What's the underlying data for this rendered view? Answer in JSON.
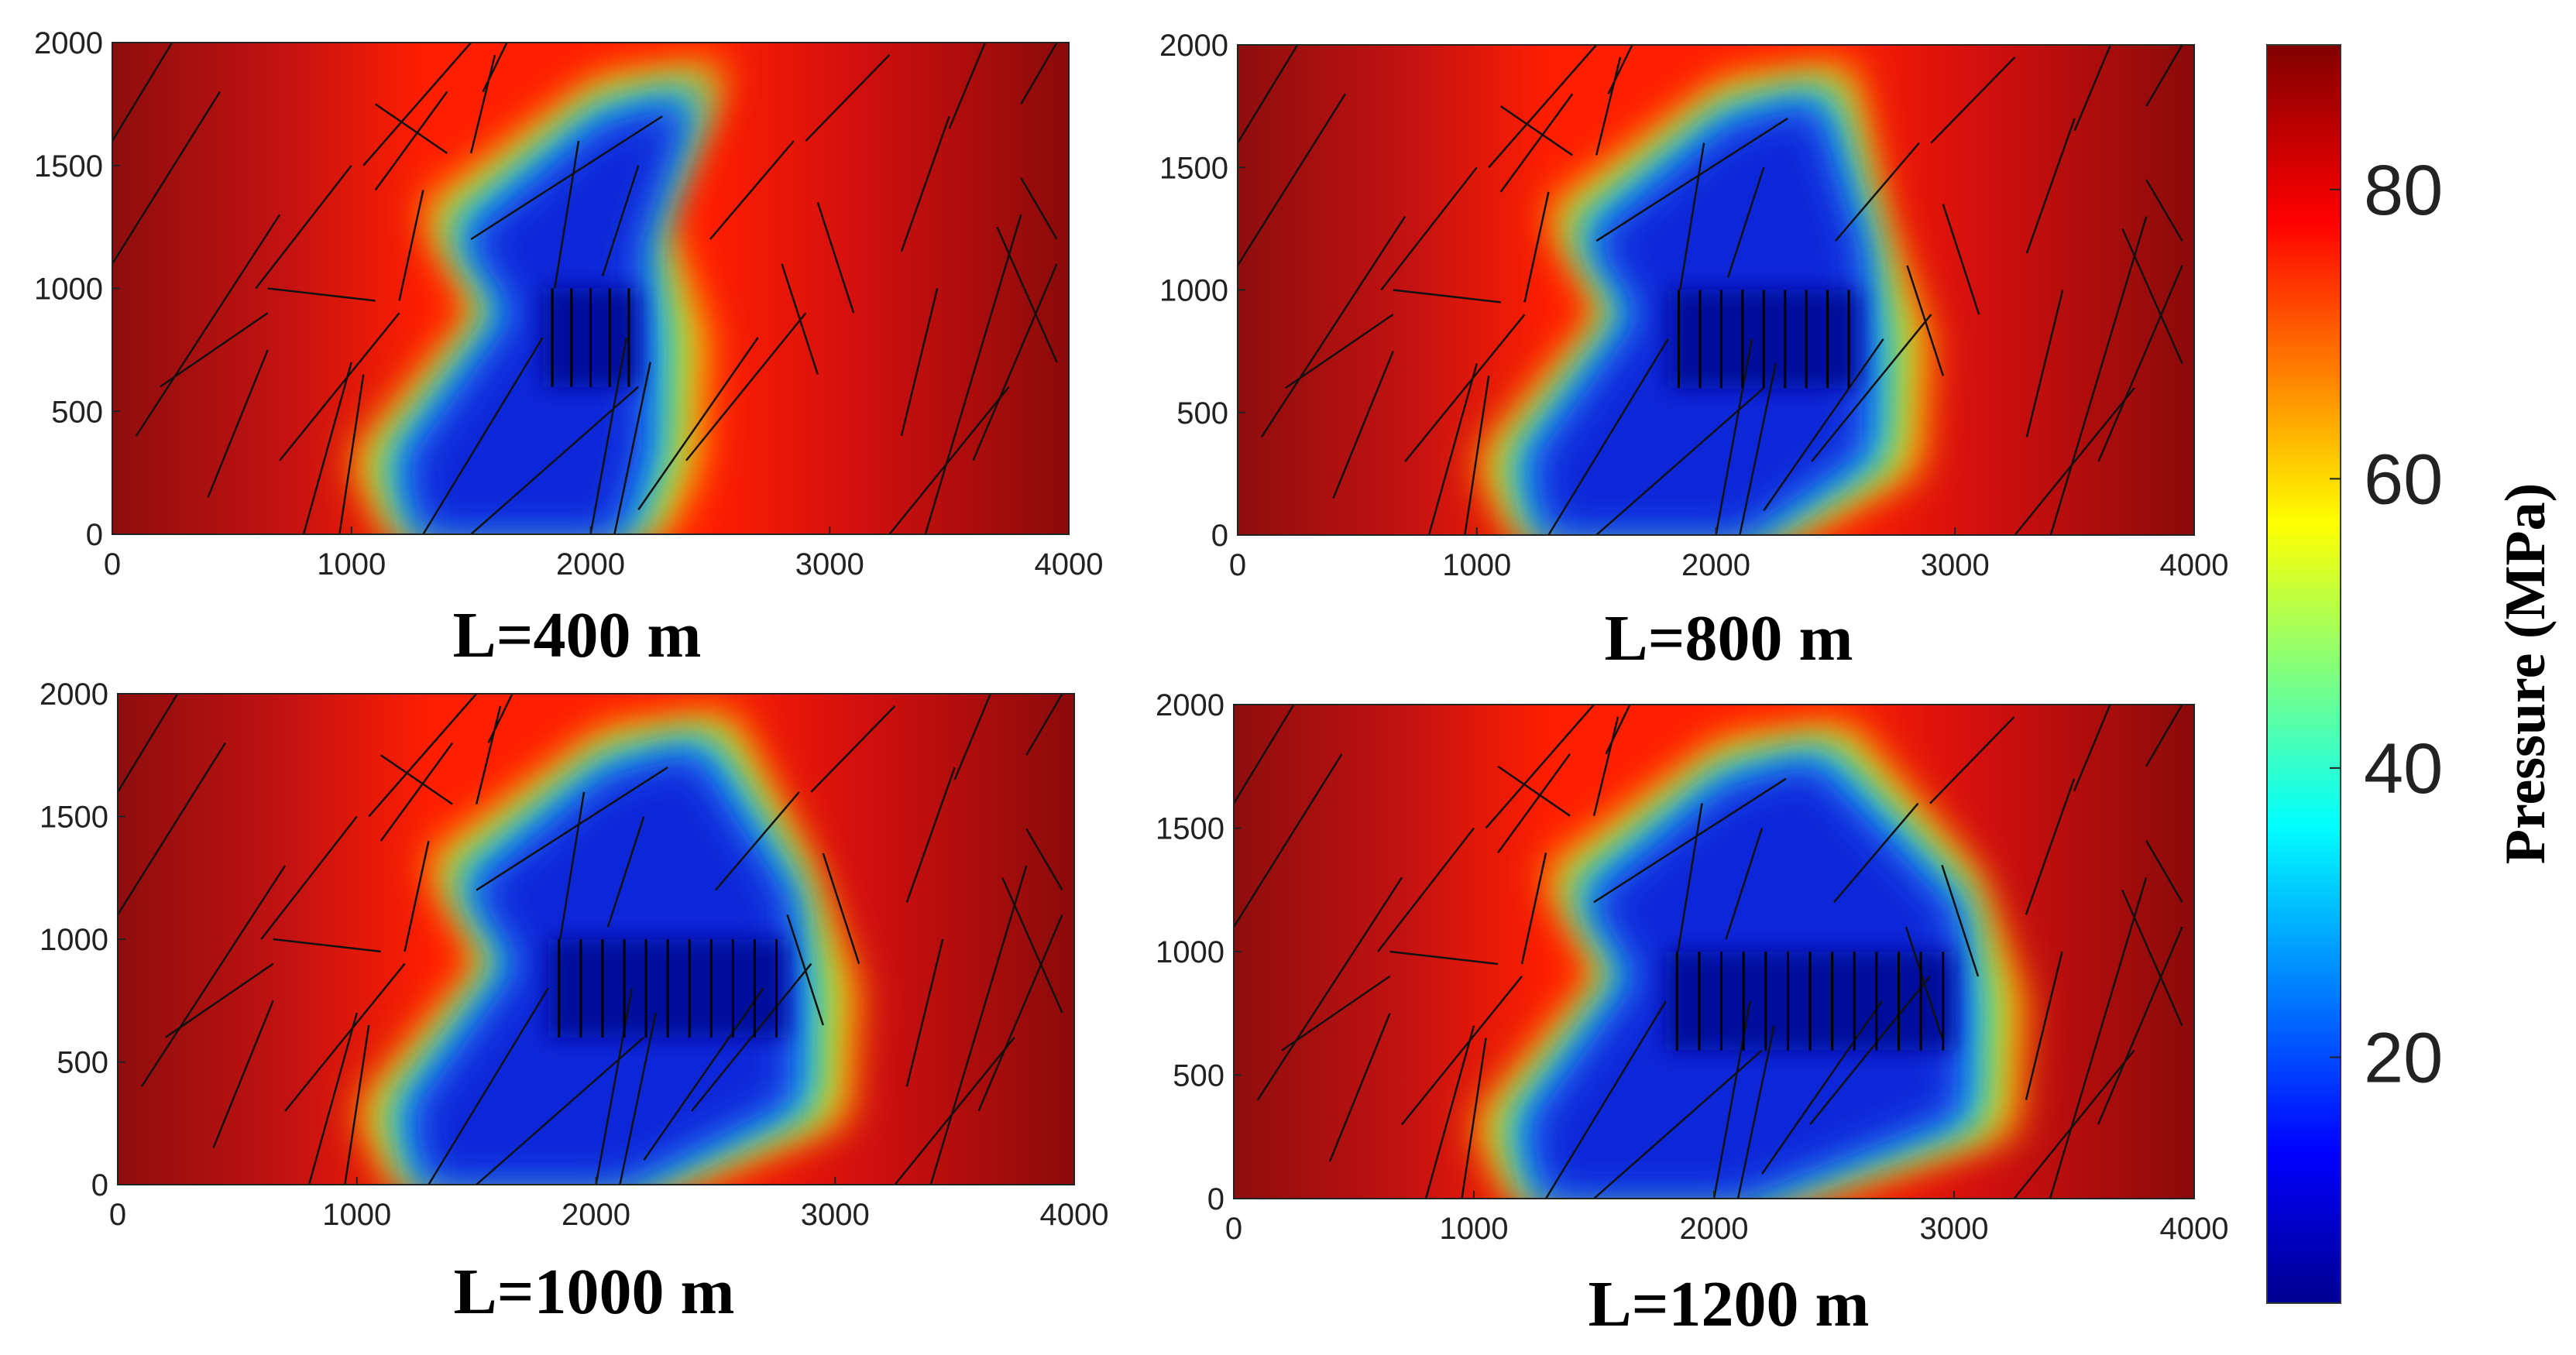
{
  "chart_data": [
    {
      "type": "heatmap",
      "title": "L=400 m",
      "fracture_length_m": 400,
      "xlim": [
        0,
        4000
      ],
      "ylim": [
        0,
        2000
      ],
      "xticks": [
        "0",
        "1000",
        "2000",
        "3000",
        "4000"
      ],
      "yticks": [
        "0",
        "500",
        "1000",
        "1500",
        "2000"
      ],
      "depleted_zone": {
        "x_start": 1800,
        "x_end": 2200,
        "y_low": 600,
        "y_high": 1000,
        "hydraulic_fractures": 5
      }
    },
    {
      "type": "heatmap",
      "title": "L=800 m",
      "fracture_length_m": 800,
      "xlim": [
        0,
        4000
      ],
      "ylim": [
        0,
        2000
      ],
      "xticks": [
        "0",
        "1000",
        "2000",
        "3000",
        "4000"
      ],
      "yticks": [
        "0",
        "500",
        "1000",
        "1500",
        "2000"
      ],
      "depleted_zone": {
        "x_start": 1800,
        "x_end": 2600,
        "y_low": 600,
        "y_high": 1000,
        "hydraulic_fractures": 9
      }
    },
    {
      "type": "heatmap",
      "title": "L=1000 m",
      "fracture_length_m": 1000,
      "xlim": [
        0,
        4000
      ],
      "ylim": [
        0,
        2000
      ],
      "xticks": [
        "0",
        "1000",
        "2000",
        "3000",
        "4000"
      ],
      "yticks": [
        "0",
        "500",
        "1000",
        "1500",
        "2000"
      ],
      "depleted_zone": {
        "x_start": 1800,
        "x_end": 2800,
        "y_low": 600,
        "y_high": 1000,
        "hydraulic_fractures": 11
      }
    },
    {
      "type": "heatmap",
      "title": "L=1200 m",
      "fracture_length_m": 1200,
      "xlim": [
        0,
        4000
      ],
      "ylim": [
        0,
        2000
      ],
      "xticks": [
        "0",
        "1000",
        "2000",
        "3000",
        "4000"
      ],
      "yticks": [
        "0",
        "500",
        "1000",
        "1500",
        "2000"
      ],
      "depleted_zone": {
        "x_start": 1800,
        "x_end": 3000,
        "y_low": 600,
        "y_high": 1000,
        "hydraulic_fractures": 13
      }
    }
  ],
  "colorbar": {
    "label": "Pressure (MPa)",
    "range": [
      3,
      90
    ],
    "ticks": [
      {
        "value": 20,
        "label": "20"
      },
      {
        "value": 40,
        "label": "40"
      },
      {
        "value": 60,
        "label": "60"
      },
      {
        "value": 80,
        "label": "80"
      }
    ],
    "colormap": [
      "#00008f",
      "#0000ff",
      "#00ffff",
      "#ffff00",
      "#ff0000",
      "#800000"
    ]
  }
}
